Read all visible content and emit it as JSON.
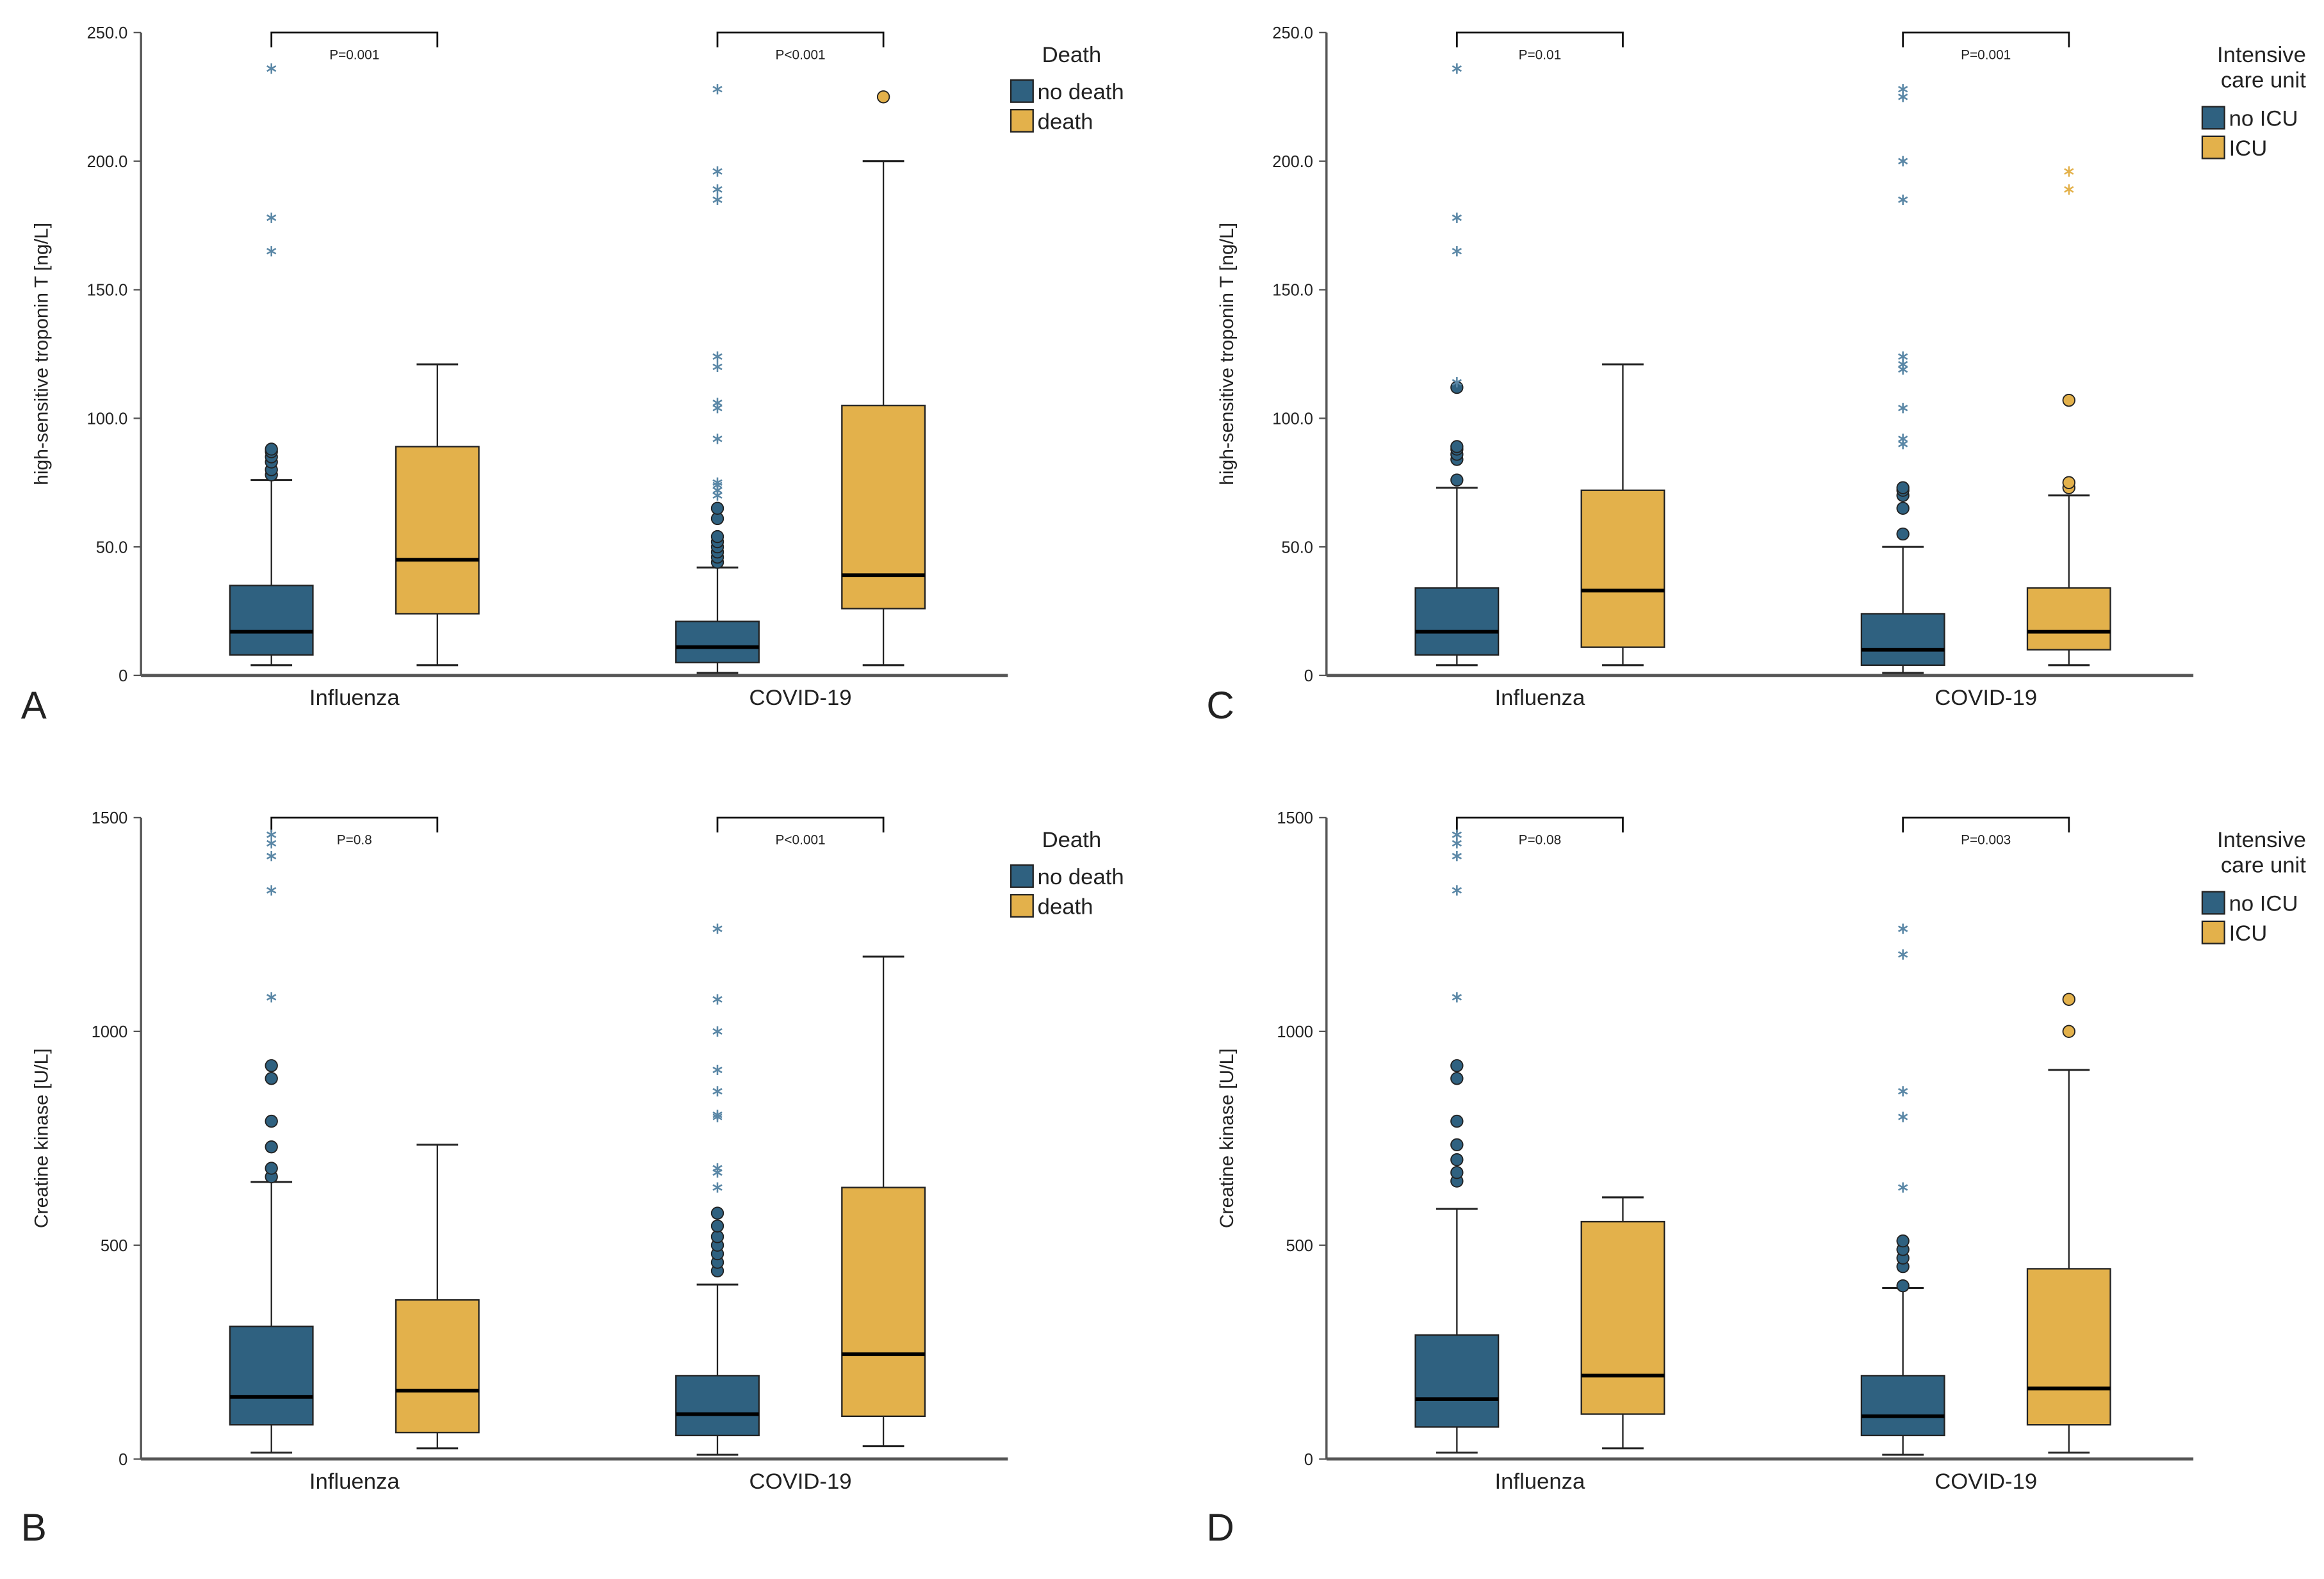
{
  "colors": {
    "group0": "#2f6180",
    "group1": "#e3b14b",
    "axis": "#555555"
  },
  "chart_data": [
    {
      "panel": "A",
      "type": "box",
      "ylabel": "high-sensitive troponin T [ng/L]",
      "ylim": [
        0,
        250
      ],
      "yticks": [
        "0",
        "50.0",
        "100.0",
        "150.0",
        "200.0",
        "250.0"
      ],
      "ytick_values": [
        0,
        50,
        100,
        150,
        200,
        250
      ],
      "categories": [
        "Influenza",
        "COVID-19"
      ],
      "legend": {
        "title": "Death",
        "entries": [
          "no death",
          "death"
        ]
      },
      "pvalues": [
        "P=0.001",
        "P<0.001"
      ],
      "boxes": [
        [
          {
            "min": 4,
            "q1": 8,
            "median": 17,
            "q3": 35,
            "max": 76,
            "outliers": [
              78,
              80,
              83,
              85,
              87,
              88
            ],
            "extremes": [
              165,
              178,
              236
            ]
          },
          {
            "min": 4,
            "q1": 24,
            "median": 45,
            "q3": 89,
            "max": 121,
            "outliers": [],
            "extremes": []
          }
        ],
        [
          {
            "min": 1,
            "q1": 5,
            "median": 11,
            "q3": 21,
            "max": 42,
            "outliers": [
              44,
              46,
              48,
              50,
              52,
              54,
              61,
              65
            ],
            "extremes": [
              70,
              72,
              74,
              75,
              92,
              104,
              106,
              120,
              124,
              185,
              189,
              196,
              228
            ]
          },
          {
            "min": 4,
            "q1": 26,
            "median": 39,
            "q3": 105,
            "max": 200,
            "outliers": [
              225
            ],
            "extremes": []
          }
        ]
      ]
    },
    {
      "panel": "C",
      "type": "box",
      "ylabel": "high-sensitive troponin T [ng/L]",
      "ylim": [
        0,
        250
      ],
      "yticks": [
        "0",
        "50.0",
        "100.0",
        "150.0",
        "200.0",
        "250.0"
      ],
      "ytick_values": [
        0,
        50,
        100,
        150,
        200,
        250
      ],
      "categories": [
        "Influenza",
        "COVID-19"
      ],
      "legend": {
        "title": "Intensive care unit",
        "title_lines": [
          "Intensive",
          "care unit"
        ],
        "entries": [
          "no ICU",
          "ICU"
        ]
      },
      "pvalues": [
        "P=0.01",
        "P=0.001"
      ],
      "boxes": [
        [
          {
            "min": 4,
            "q1": 8,
            "median": 17,
            "q3": 34,
            "max": 73,
            "outliers": [
              76,
              84,
              86,
              88,
              89,
              112
            ],
            "extremes": [
              114,
              165,
              178,
              236
            ]
          },
          {
            "min": 4,
            "q1": 11,
            "median": 33,
            "q3": 72,
            "max": 121,
            "outliers": [],
            "extremes": []
          }
        ],
        [
          {
            "min": 1,
            "q1": 4,
            "median": 10,
            "q3": 24,
            "max": 50,
            "outliers": [
              55,
              65,
              70,
              72,
              73
            ],
            "extremes": [
              90,
              92,
              104,
              119,
              121,
              124,
              185,
              200,
              225,
              228
            ]
          },
          {
            "min": 4,
            "q1": 10,
            "median": 17,
            "q3": 34,
            "max": 70,
            "outliers": [
              73,
              75,
              107
            ],
            "extremes": [
              189,
              196
            ]
          }
        ]
      ]
    },
    {
      "panel": "B",
      "type": "box",
      "ylabel": "Creatine kinase [U/L]",
      "ylim": [
        0,
        1500
      ],
      "yticks": [
        "0",
        "500",
        "1000",
        "1500"
      ],
      "ytick_values": [
        0,
        500,
        1000,
        1500
      ],
      "categories": [
        "Influenza",
        "COVID-19"
      ],
      "legend": {
        "title": "Death",
        "entries": [
          "no death",
          "death"
        ]
      },
      "pvalues": [
        "P=0.8",
        "P<0.001"
      ],
      "boxes": [
        [
          {
            "min": 15,
            "q1": 80,
            "median": 145,
            "q3": 310,
            "max": 648,
            "outliers": [
              660,
              680,
              730,
              790,
              890,
              920
            ],
            "extremes": [
              1080,
              1330,
              1410,
              1440,
              1460
            ]
          },
          {
            "min": 25,
            "q1": 62,
            "median": 160,
            "q3": 372,
            "max": 735,
            "outliers": [],
            "extremes": []
          }
        ],
        [
          {
            "min": 10,
            "q1": 55,
            "median": 105,
            "q3": 195,
            "max": 408,
            "outliers": [
              440,
              460,
              480,
              500,
              520,
              545,
              575
            ],
            "extremes": [
              635,
              670,
              680,
              800,
              805,
              860,
              910,
              1000,
              1075,
              1240
            ]
          },
          {
            "min": 30,
            "q1": 100,
            "median": 245,
            "q3": 635,
            "max": 1175,
            "outliers": [],
            "extremes": []
          }
        ]
      ]
    },
    {
      "panel": "D",
      "type": "box",
      "ylabel": "Creatine kinase [U/L]",
      "ylim": [
        0,
        1500
      ],
      "yticks": [
        "0",
        "500",
        "1000",
        "1500"
      ],
      "ytick_values": [
        0,
        500,
        1000,
        1500
      ],
      "categories": [
        "Influenza",
        "COVID-19"
      ],
      "legend": {
        "title": "Intensive care unit",
        "title_lines": [
          "Intensive",
          "care unit"
        ],
        "entries": [
          "no ICU",
          "ICU"
        ]
      },
      "pvalues": [
        "P=0.08",
        "P=0.003"
      ],
      "boxes": [
        [
          {
            "min": 15,
            "q1": 75,
            "median": 140,
            "q3": 290,
            "max": 585,
            "outliers": [
              650,
              670,
              700,
              735,
              790,
              890,
              920
            ],
            "extremes": [
              1080,
              1330,
              1410,
              1440,
              1460
            ]
          },
          {
            "min": 25,
            "q1": 105,
            "median": 195,
            "q3": 555,
            "max": 612,
            "outliers": [],
            "extremes": []
          }
        ],
        [
          {
            "min": 10,
            "q1": 55,
            "median": 100,
            "q3": 195,
            "max": 400,
            "outliers": [
              405,
              450,
              470,
              490,
              510
            ],
            "extremes": [
              635,
              800,
              860,
              1180,
              1240
            ]
          },
          {
            "min": 15,
            "q1": 80,
            "median": 165,
            "q3": 445,
            "max": 910,
            "outliers": [
              1000,
              1075
            ],
            "extremes": []
          }
        ]
      ]
    }
  ]
}
